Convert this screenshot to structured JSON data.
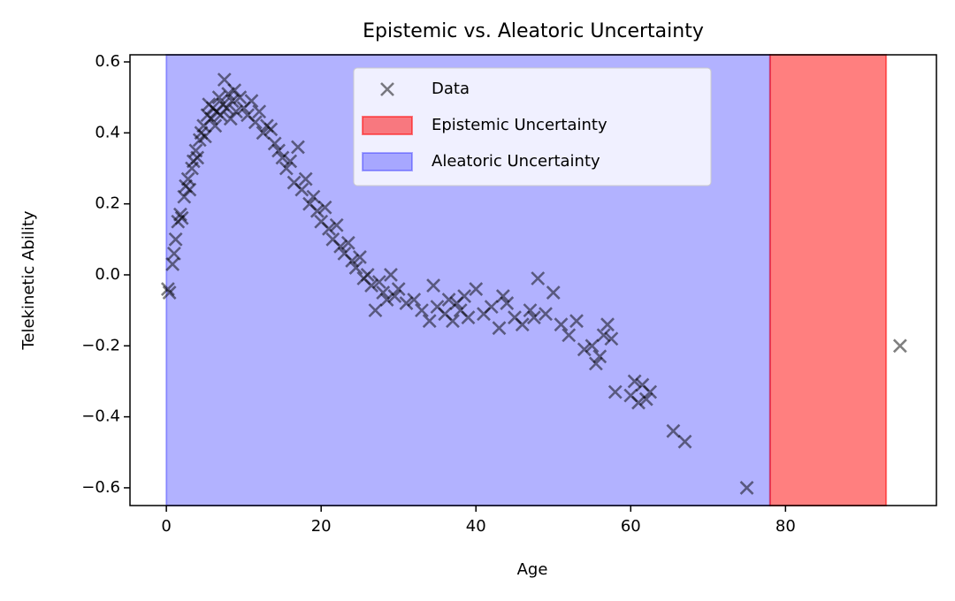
{
  "chart_data": {
    "type": "scatter",
    "title": "Epistemic vs. Aleatoric Uncertainty",
    "x_label": "Age",
    "y_label": "Telekinetic Ability",
    "xlim": [
      -4.7,
      99.5
    ],
    "ylim": [
      -0.65,
      0.62
    ],
    "xticks": [
      0,
      20,
      40,
      60,
      80
    ],
    "yticks": [
      {
        "value": -0.6,
        "label": "−0.6"
      },
      {
        "value": -0.4,
        "label": "−0.4"
      },
      {
        "value": -0.2,
        "label": "−0.2"
      },
      {
        "value": 0,
        "label": "0.0"
      },
      0.2,
      0.4,
      0.6
    ],
    "legend": "upper center",
    "spans": [
      {
        "name": "Epistemic Uncertainty",
        "color": "#ff0000",
        "x": [
          78,
          93
        ]
      },
      {
        "name": "Aleatoric Uncertainty",
        "color": "#0000ff",
        "x": [
          0,
          78
        ]
      }
    ],
    "series": [
      {
        "name": "Data",
        "color": "#000000",
        "x": [
          0.2,
          0.4,
          0.8,
          1.0,
          1.2,
          1.5,
          1.8,
          2.0,
          2.3,
          2.5,
          2.8,
          3.0,
          3.3,
          3.5,
          3.8,
          4.0,
          4.3,
          4.5,
          4.8,
          5.0,
          5.3,
          5.5,
          5.8,
          6.0,
          6.3,
          6.5,
          6.8,
          7.0,
          7.3,
          7.5,
          7.8,
          8.0,
          8.3,
          8.5,
          8.8,
          9.0,
          9.5,
          10.0,
          10.5,
          11.0,
          11.5,
          12.0,
          12.5,
          13.0,
          13.5,
          14.0,
          14.5,
          15.0,
          15.5,
          16.0,
          16.5,
          17.0,
          17.5,
          18.0,
          18.5,
          19.0,
          19.5,
          20.0,
          20.5,
          21.0,
          21.5,
          22.0,
          22.5,
          23.0,
          23.5,
          24.0,
          24.5,
          25.0,
          25.5,
          26.0,
          26.5,
          27.0,
          27.5,
          28.0,
          28.5,
          29.0,
          29.5,
          30.0,
          31.0,
          32.0,
          33.0,
          34.0,
          34.5,
          35.0,
          36.0,
          36.5,
          37.0,
          37.5,
          38.0,
          38.5,
          39.0,
          40.0,
          41.0,
          42.0,
          43.0,
          43.5,
          44.0,
          45.0,
          46.0,
          47.0,
          47.5,
          48.0,
          49.0,
          50.0,
          51.0,
          52.0,
          53.0,
          54.0,
          55.0,
          55.5,
          56.0,
          56.5,
          57.0,
          57.5,
          58.0,
          60.0,
          60.5,
          61.0,
          61.5,
          62.0,
          62.5,
          65.5,
          67.0,
          75.0,
          94.8
        ],
        "values": [
          -0.04,
          -0.05,
          0.03,
          0.06,
          0.1,
          0.15,
          0.17,
          0.16,
          0.22,
          0.25,
          0.27,
          0.24,
          0.3,
          0.32,
          0.35,
          0.33,
          0.38,
          0.4,
          0.42,
          0.39,
          0.45,
          0.48,
          0.44,
          0.47,
          0.42,
          0.46,
          0.5,
          0.45,
          0.48,
          0.55,
          0.47,
          0.51,
          0.44,
          0.49,
          0.52,
          0.46,
          0.5,
          0.47,
          0.45,
          0.49,
          0.43,
          0.46,
          0.4,
          0.42,
          0.41,
          0.37,
          0.35,
          0.33,
          0.3,
          0.32,
          0.26,
          0.36,
          0.24,
          0.27,
          0.2,
          0.22,
          0.18,
          0.15,
          0.19,
          0.13,
          0.1,
          0.14,
          0.08,
          0.06,
          0.09,
          0.04,
          0.02,
          0.05,
          -0.01,
          0.0,
          -0.03,
          -0.1,
          -0.02,
          -0.05,
          -0.07,
          0.0,
          -0.06,
          -0.04,
          -0.08,
          -0.07,
          -0.1,
          -0.13,
          -0.03,
          -0.09,
          -0.11,
          -0.07,
          -0.13,
          -0.08,
          -0.1,
          -0.06,
          -0.12,
          -0.04,
          -0.11,
          -0.09,
          -0.15,
          -0.06,
          -0.08,
          -0.12,
          -0.14,
          -0.1,
          -0.12,
          -0.01,
          -0.11,
          -0.05,
          -0.14,
          -0.17,
          -0.13,
          -0.21,
          -0.2,
          -0.25,
          -0.23,
          -0.17,
          -0.14,
          -0.18,
          -0.33,
          -0.34,
          -0.3,
          -0.36,
          -0.31,
          -0.35,
          -0.33,
          -0.44,
          -0.47,
          -0.6,
          -0.2
        ]
      }
    ]
  }
}
